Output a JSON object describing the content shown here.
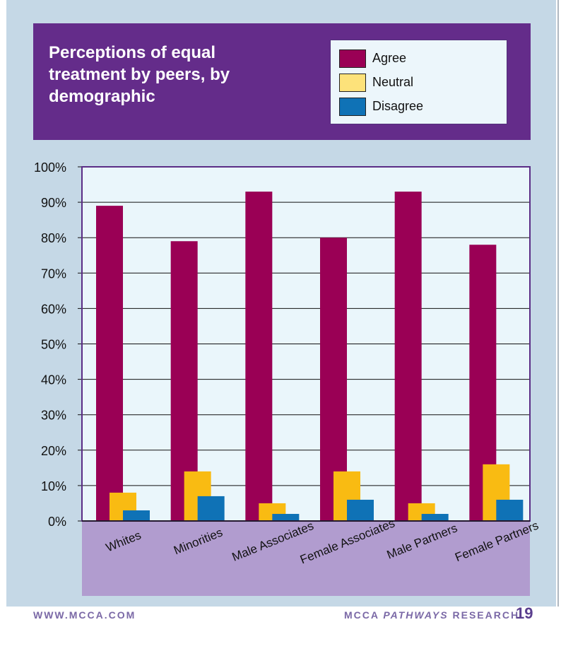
{
  "chart_data": {
    "type": "bar",
    "title": "Perceptions of equal treatment by peers, by demographic",
    "categories": [
      "Whites",
      "Minorities",
      "Male Associates",
      "Female Associates",
      "Male Partners",
      "Female Partners"
    ],
    "series": [
      {
        "name": "Agree",
        "color": "#9a0055",
        "values": [
          89,
          79,
          93,
          80,
          93,
          78
        ]
      },
      {
        "name": "Neutral",
        "color": "#f9bb12",
        "values": [
          8,
          14,
          5,
          14,
          5,
          16
        ]
      },
      {
        "name": "Disagree",
        "color": "#0f72b6",
        "values": [
          3,
          7,
          2,
          6,
          2,
          6
        ]
      }
    ],
    "ylim": [
      0,
      100
    ],
    "yticks": [
      "0%",
      "10%",
      "20%",
      "30%",
      "40%",
      "50%",
      "60%",
      "70%",
      "80%",
      "90%",
      "100%"
    ],
    "grid": true,
    "legend_position": "top-right",
    "xlabel": "",
    "ylabel": ""
  },
  "header": {
    "title": "Perceptions of equal treatment by peers, by demographic"
  },
  "legend": {
    "agree": "Agree",
    "neutral": "Neutral",
    "disagree": "Disagree"
  },
  "footer": {
    "website": "WWW.MCCA.COM",
    "section_prefix": "MCCA ",
    "section_italic": "PATHWAYS",
    "section_suffix": " RESEARCH",
    "page_number": "19"
  },
  "colors": {
    "header_bg": "#642c8a",
    "panel_bg": "#c5d8e6",
    "plot_bg": "#eaf6fb",
    "axis_band": "#b19ccf"
  }
}
